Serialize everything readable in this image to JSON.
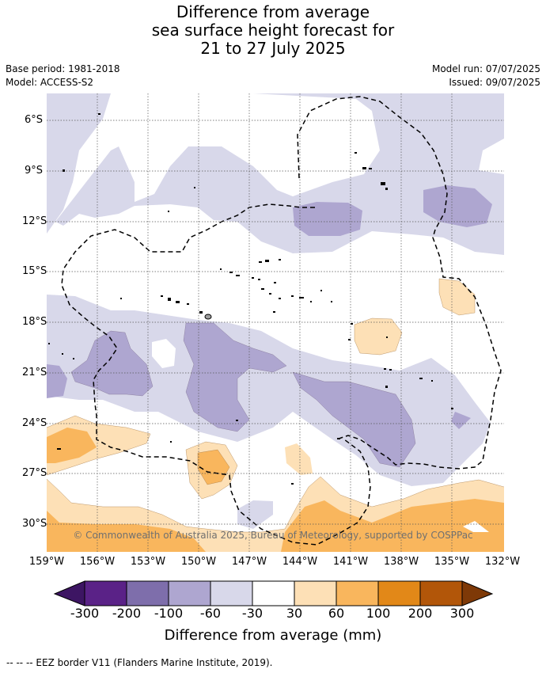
{
  "header": {
    "title_line1": "Difference from average",
    "title_line2": "sea surface height forecast for",
    "title_line3": "21 to 27 July 2025",
    "base_period": "Base period: 1981-2018",
    "model": "Model: ACCESS-S2",
    "model_run": "Model run: 07/07/2025",
    "issued": "Issued: 09/07/2025"
  },
  "map": {
    "lat_ticks": [
      "6°S",
      "9°S",
      "12°S",
      "15°S",
      "18°S",
      "21°S",
      "24°S",
      "27°S",
      "30°S"
    ],
    "lon_ticks": [
      "159°W",
      "156°W",
      "153°W",
      "150°W",
      "147°W",
      "144°W",
      "141°W",
      "138°W",
      "135°W",
      "132°W"
    ],
    "copyright": "© Commonwealth of Australia 2025, Bureau of Meteorology, supported by COSPPac",
    "gridlines": true
  },
  "colorbar": {
    "labels": [
      "-300",
      "-200",
      "-100",
      "-60",
      "-30",
      "30",
      "60",
      "100",
      "200",
      "300"
    ],
    "colors": [
      "#3d1563",
      "#5a2287",
      "#7e6eab",
      "#aea6d0",
      "#d8d8ea",
      "#ffffff",
      "#fde0b6",
      "#f9b65d",
      "#e28818",
      "#b25609",
      "#7e3907"
    ],
    "title": "Difference from average (mm)"
  },
  "legend": {
    "eez_note": "-- -- -- EEZ border V11 (Flanders Marine Institute, 2019)."
  }
}
